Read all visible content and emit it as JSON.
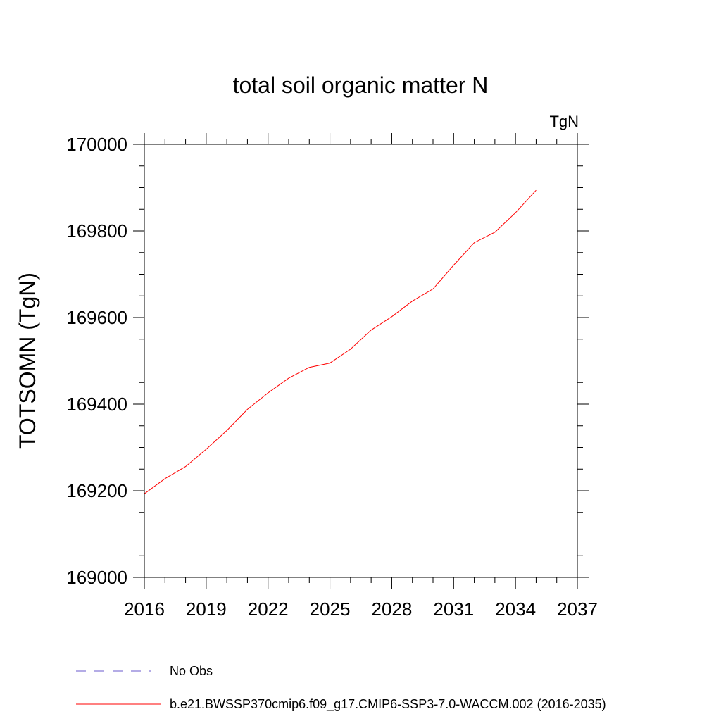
{
  "chart_data": {
    "type": "line",
    "title": "total soil organic matter N",
    "units": "TgN",
    "ylabel": "TOTSOMN  (TgN)",
    "xlabel": "",
    "xlim": [
      2016,
      2037
    ],
    "ylim": [
      169000,
      170000
    ],
    "x_ticks": [
      2016,
      2019,
      2022,
      2025,
      2028,
      2031,
      2034,
      2037
    ],
    "x_tick_labels": [
      "2016",
      "2019",
      "2022",
      "2025",
      "2028",
      "2031",
      "2034",
      "2037"
    ],
    "x_minor_step": 1,
    "y_ticks": [
      169000,
      169200,
      169400,
      169600,
      169800,
      170000
    ],
    "y_tick_labels": [
      "169000",
      "169200",
      "169400",
      "169600",
      "169800",
      "170000"
    ],
    "y_minor_step": 50,
    "grid": false,
    "legend_position": "bottom",
    "series": [
      {
        "name": "No Obs",
        "color": "#6a5acd",
        "dash": "dashed",
        "x": [],
        "values": []
      },
      {
        "name": "b.e21.BWSSP370cmip6.f09_g17.CMIP6-SSP3-7.0-WACCM.002 (2016-2035)",
        "color": "#ff0000",
        "dash": "solid",
        "x": [
          2016,
          2017,
          2018,
          2019,
          2020,
          2021,
          2022,
          2023,
          2024,
          2025,
          2026,
          2027,
          2028,
          2029,
          2030,
          2031,
          2032,
          2033,
          2034,
          2035
        ],
        "values": [
          169193,
          169228,
          169256,
          169296,
          169339,
          169388,
          169426,
          169460,
          169485,
          169495,
          169527,
          169571,
          169602,
          169638,
          169666,
          169721,
          169773,
          169797,
          169842,
          169894
        ]
      }
    ]
  }
}
